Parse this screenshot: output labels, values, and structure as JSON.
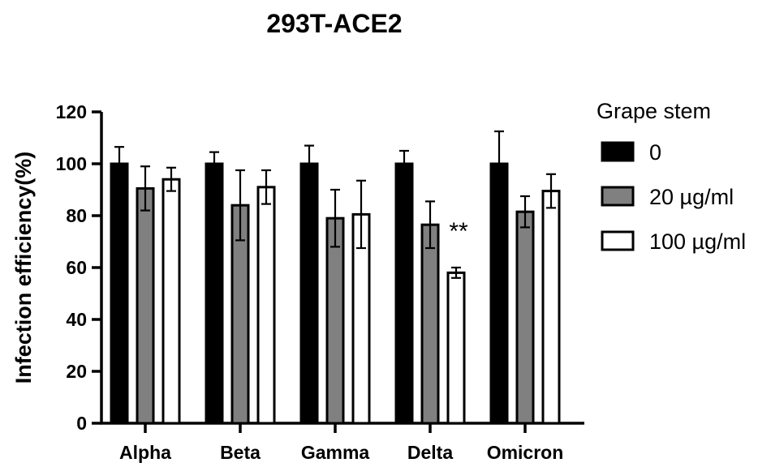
{
  "chart_data": {
    "type": "bar",
    "title": "293T-ACE2",
    "ylabel": "Infection efficiency(%)",
    "xlabel": "",
    "ylim": [
      0,
      120
    ],
    "yticks": [
      0,
      20,
      40,
      60,
      80,
      100,
      120
    ],
    "categories": [
      "Alpha",
      "Beta",
      "Gamma",
      "Delta",
      "Omicron"
    ],
    "legend_title": "Grape stem",
    "legend_position": "right",
    "series": [
      {
        "name": "0",
        "color": "#000000",
        "values": [
          100,
          100,
          100,
          100,
          100
        ],
        "errors": [
          6.5,
          4.5,
          7,
          5,
          12.5
        ]
      },
      {
        "name": "20 µg/ml",
        "color": "#808080",
        "values": [
          90.5,
          84,
          79,
          76.5,
          81.5
        ],
        "errors": [
          8.5,
          13.5,
          11,
          9,
          6
        ]
      },
      {
        "name": "100 µg/ml",
        "color": "#ffffff",
        "values": [
          94,
          91,
          80.5,
          58,
          89.5
        ],
        "errors": [
          4.5,
          6.5,
          13,
          2,
          6.5
        ]
      }
    ],
    "annotations": [
      {
        "text": "**",
        "category": "Delta",
        "series": "100 µg/ml"
      }
    ],
    "grid": false
  }
}
